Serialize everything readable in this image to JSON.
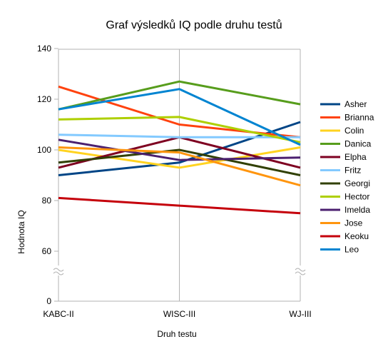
{
  "chart_data": {
    "type": "line",
    "title": "Graf výsledků IQ podle druhu testů",
    "xlabel": "Druh testu",
    "ylabel": "Hodnota IQ",
    "categories": [
      "KABC-II",
      "WISC-III",
      "WJ-III"
    ],
    "y_ticks": [
      "0",
      "60",
      "80",
      "100",
      "120",
      "140"
    ],
    "axis_break": true,
    "ylim": [
      0,
      140
    ],
    "grid": "vertical",
    "legend_position": "right",
    "series": [
      {
        "name": "Asher",
        "color": "#004586",
        "values": [
          90,
          95,
          111
        ]
      },
      {
        "name": "Brianna",
        "color": "#ff420e",
        "values": [
          125,
          110,
          105
        ]
      },
      {
        "name": "Colin",
        "color": "#ffd320",
        "values": [
          100,
          93,
          101
        ]
      },
      {
        "name": "Danica",
        "color": "#579d1c",
        "values": [
          116,
          127,
          118
        ]
      },
      {
        "name": "Elpha",
        "color": "#7e0021",
        "values": [
          93,
          105,
          93
        ]
      },
      {
        "name": "Fritz",
        "color": "#83caff",
        "values": [
          106,
          105,
          105
        ]
      },
      {
        "name": "Georgi",
        "color": "#314004",
        "values": [
          95,
          100,
          90
        ]
      },
      {
        "name": "Hector",
        "color": "#aecf00",
        "values": [
          112,
          113,
          103
        ]
      },
      {
        "name": "Imelda",
        "color": "#4b1f6f",
        "values": [
          104,
          96,
          97
        ]
      },
      {
        "name": "Jose",
        "color": "#ff950e",
        "values": [
          101,
          99,
          86
        ]
      },
      {
        "name": "Keoku",
        "color": "#c5000b",
        "values": [
          81,
          78,
          75
        ]
      },
      {
        "name": "Leo",
        "color": "#0084d1",
        "values": [
          116,
          124,
          102
        ]
      }
    ]
  }
}
